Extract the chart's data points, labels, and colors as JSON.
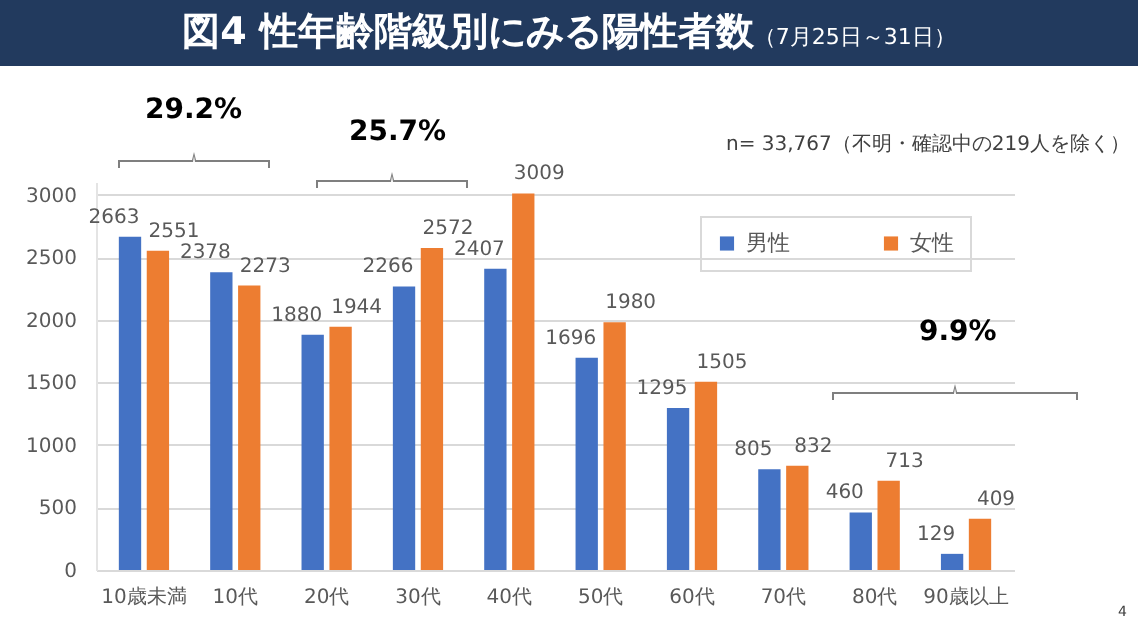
{
  "chart_data": {
    "type": "bar",
    "title": "図4 性年齢階級別にみる陽性者数",
    "subtitle": "（7月25日～31日）",
    "categories": [
      "10歳未満",
      "10代",
      "20代",
      "30代",
      "40代",
      "50代",
      "60代",
      "70代",
      "80代",
      "90歳以上"
    ],
    "series": [
      {
        "name": "男性",
        "color": "#4472c4",
        "values": [
          2663,
          2378,
          1880,
          2266,
          2407,
          1696,
          1295,
          805,
          460,
          129
        ]
      },
      {
        "name": "女性",
        "color": "#ed7d31",
        "values": [
          2551,
          2273,
          1944,
          2572,
          3009,
          1980,
          1505,
          832,
          713,
          409
        ]
      }
    ],
    "ylim": [
      0,
      3100
    ],
    "yticks": [
      0,
      500,
      1000,
      1500,
      2000,
      2500,
      3000
    ],
    "grid": "y",
    "legend": "top right",
    "data_labels": true,
    "annotations": [
      "n= 33,767（不明・確認中の219人を除く）",
      "29.2%",
      "25.7%",
      "9.9%",
      "4"
    ]
  }
}
